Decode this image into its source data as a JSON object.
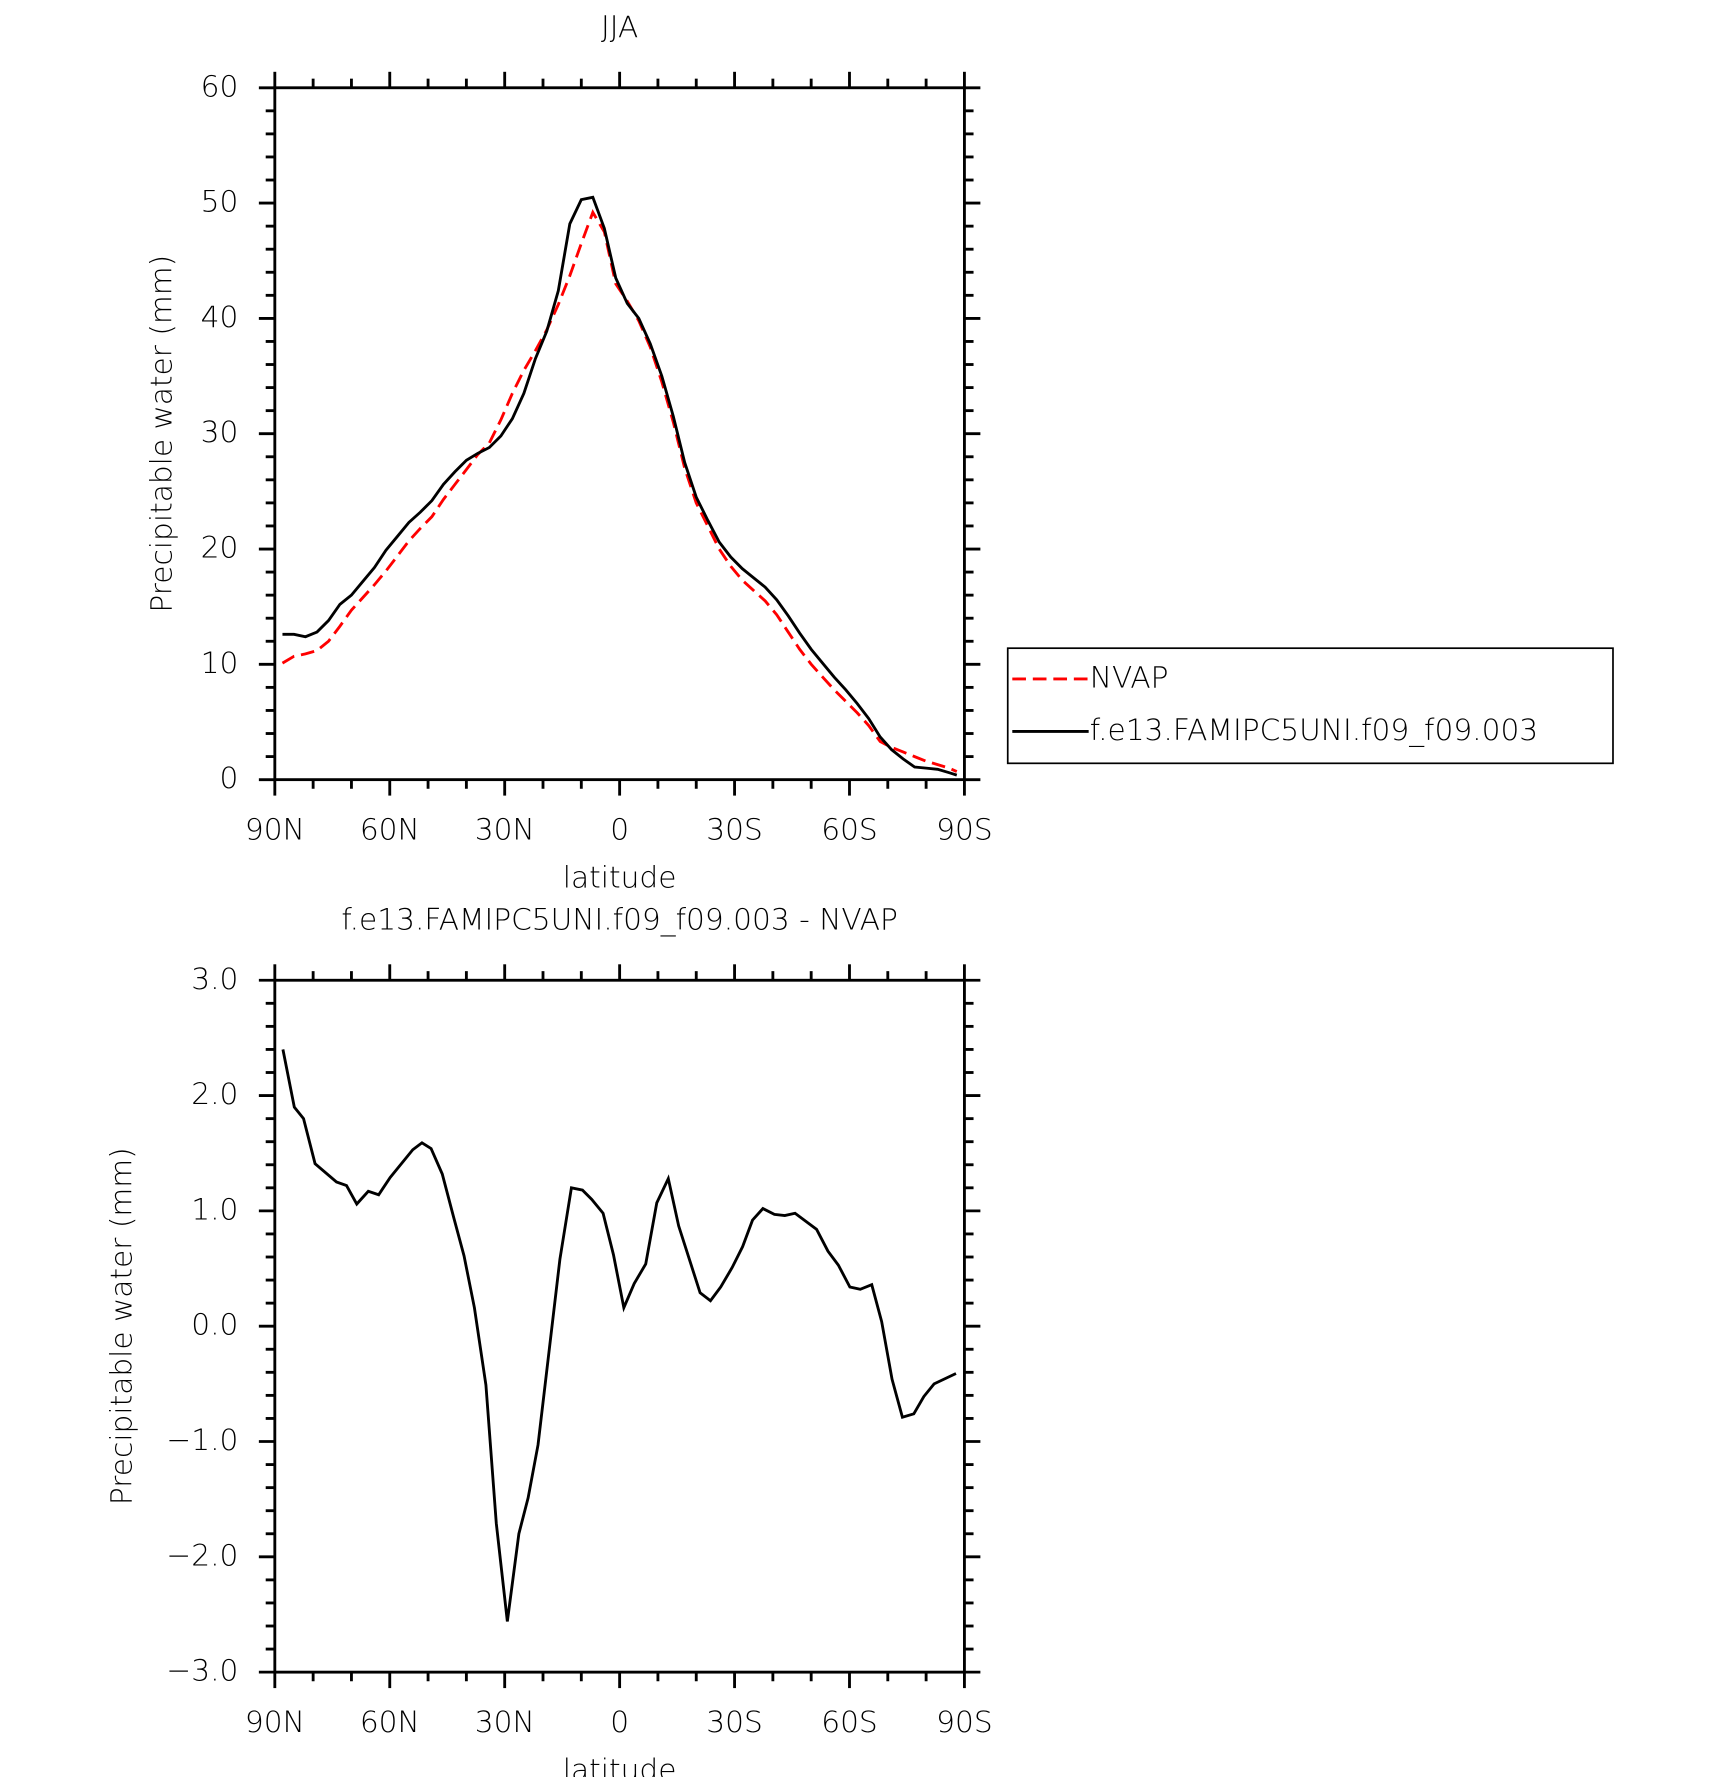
{
  "chart_data": [
    {
      "type": "line",
      "title": "JJA",
      "xlabel": "latitude",
      "ylabel": "Precipitable water (mm)",
      "x": [
        88,
        85,
        82,
        79,
        76,
        73,
        70,
        67,
        64,
        61,
        58,
        55,
        52,
        49,
        46,
        43,
        40,
        37,
        34,
        31,
        28,
        25,
        22,
        19,
        16,
        13,
        10,
        7,
        4,
        1,
        -2,
        -5,
        -8,
        -11,
        -14,
        -17,
        -20,
        -23,
        -26,
        -29,
        -32,
        -35,
        -38,
        -41,
        -44,
        -47,
        -50,
        -53,
        -56,
        -59,
        -62,
        -65,
        -68,
        -71,
        -74,
        -77,
        -80,
        -83,
        -86,
        -88
      ],
      "series": [
        {
          "name": "NVAP",
          "color": "#ff0000",
          "dash": true,
          "values": [
            10.1,
            10.7,
            10.9,
            11.2,
            12.0,
            13.3,
            14.7,
            15.8,
            16.9,
            18.1,
            19.4,
            20.7,
            21.8,
            22.8,
            24.3,
            25.6,
            26.9,
            28.2,
            29.2,
            31.2,
            33.5,
            35.5,
            37.2,
            39.0,
            41.2,
            43.7,
            46.5,
            49.2,
            47.5,
            43.0,
            41.5,
            39.8,
            37.5,
            34.5,
            31.0,
            27.0,
            24.0,
            22.0,
            20.0,
            18.5,
            17.3,
            16.4,
            15.5,
            14.3,
            12.8,
            11.3,
            10.0,
            8.9,
            7.8,
            6.8,
            5.8,
            4.7,
            3.3,
            2.8,
            2.4,
            2.0,
            1.6,
            1.3,
            1.0,
            0.7
          ]
        },
        {
          "name": "f.e13.FAMIPC5UNI.f09_f09.003",
          "color": "#000000",
          "dash": false,
          "values": [
            12.6,
            12.6,
            12.4,
            12.8,
            13.8,
            15.2,
            16.0,
            17.2,
            18.4,
            19.9,
            21.1,
            22.3,
            23.2,
            24.2,
            25.6,
            26.7,
            27.7,
            28.3,
            28.8,
            29.8,
            31.3,
            33.5,
            36.5,
            38.9,
            42.4,
            48.2,
            50.3,
            50.5,
            47.8,
            43.5,
            41.3,
            40.0,
            37.8,
            35.0,
            31.5,
            27.5,
            24.5,
            22.5,
            20.6,
            19.3,
            18.3,
            17.5,
            16.7,
            15.6,
            14.2,
            12.7,
            11.3,
            10.1,
            8.9,
            7.8,
            6.6,
            5.3,
            3.7,
            2.6,
            1.8,
            1.1,
            1.0,
            0.9,
            0.6,
            0.4
          ]
        }
      ],
      "xlim": [
        90,
        -90
      ],
      "xticks": [
        {
          "value": 90,
          "label": "90N"
        },
        {
          "value": 60,
          "label": "60N"
        },
        {
          "value": 30,
          "label": "30N"
        },
        0,
        {
          "value": -30,
          "label": "30S"
        },
        {
          "value": -60,
          "label": "60S"
        },
        {
          "value": -90,
          "label": "90S"
        }
      ],
      "ylim": [
        0,
        60
      ],
      "yticks": [
        0,
        10,
        20,
        30,
        40,
        50,
        60
      ],
      "legend": "right"
    },
    {
      "type": "line",
      "title": "f.e13.FAMIPC5UNI.f09_f09.003 - NVAP",
      "xlabel": "latitude",
      "ylabel": "Precipitable water (mm)",
      "x": [
        87.9,
        84.9,
        82.5,
        79.5,
        73.9,
        71.3,
        68.6,
        65.6,
        62.9,
        59.9,
        54.0,
        51.6,
        49.2,
        46.3,
        43.3,
        40.6,
        37.9,
        34.9,
        32.2,
        29.3,
        26.3,
        23.9,
        21.3,
        15.6,
        12.6,
        9.7,
        7.3,
        4.3,
        1.6,
        -1.1,
        -3.8,
        -6.8,
        -9.7,
        -12.7,
        -15.4,
        -21.0,
        -23.7,
        -26.4,
        -29.4,
        -32.1,
        -34.7,
        -37.4,
        -40.4,
        -43.1,
        -45.8,
        -51.4,
        -54.4,
        -57.1,
        -60.1,
        -62.8,
        -65.8,
        -68.4,
        -71.1,
        -73.8,
        -76.8,
        -79.4,
        -82.1,
        -87.8
      ],
      "values": [
        2.4,
        1.9,
        1.8,
        1.41,
        1.25,
        1.22,
        1.06,
        1.17,
        1.14,
        1.29,
        1.53,
        1.59,
        1.54,
        1.32,
        0.94,
        0.61,
        0.16,
        -0.51,
        -1.71,
        -2.56,
        -1.8,
        -1.49,
        -1.03,
        0.58,
        1.2,
        1.18,
        1.1,
        0.98,
        0.62,
        0.16,
        0.37,
        0.54,
        1.07,
        1.28,
        0.87,
        0.29,
        0.22,
        0.34,
        0.51,
        0.69,
        0.92,
        1.02,
        0.97,
        0.96,
        0.98,
        0.84,
        0.65,
        0.53,
        0.34,
        0.32,
        0.36,
        0.04,
        -0.46,
        -0.79,
        -0.76,
        -0.61,
        -0.5,
        -0.41
      ],
      "color": "#000000",
      "xlim": [
        90,
        -90
      ],
      "xticks": [
        {
          "value": 90,
          "label": "90N"
        },
        {
          "value": 60,
          "label": "60N"
        },
        {
          "value": 30,
          "label": "30N"
        },
        0,
        {
          "value": -30,
          "label": "30S"
        },
        {
          "value": -60,
          "label": "60S"
        },
        {
          "value": -90,
          "label": "90S"
        }
      ],
      "ylim": [
        -3,
        3
      ],
      "yticks": [
        {
          "value": -3,
          "label": "−3.0"
        },
        {
          "value": -2,
          "label": "−2.0"
        },
        {
          "value": -1,
          "label": "−1.0"
        },
        {
          "value": 0,
          "label": "0.0"
        },
        {
          "value": 1,
          "label": "1.0"
        },
        {
          "value": 2,
          "label": "2.0"
        },
        {
          "value": 3,
          "label": "3.0"
        }
      ]
    }
  ]
}
